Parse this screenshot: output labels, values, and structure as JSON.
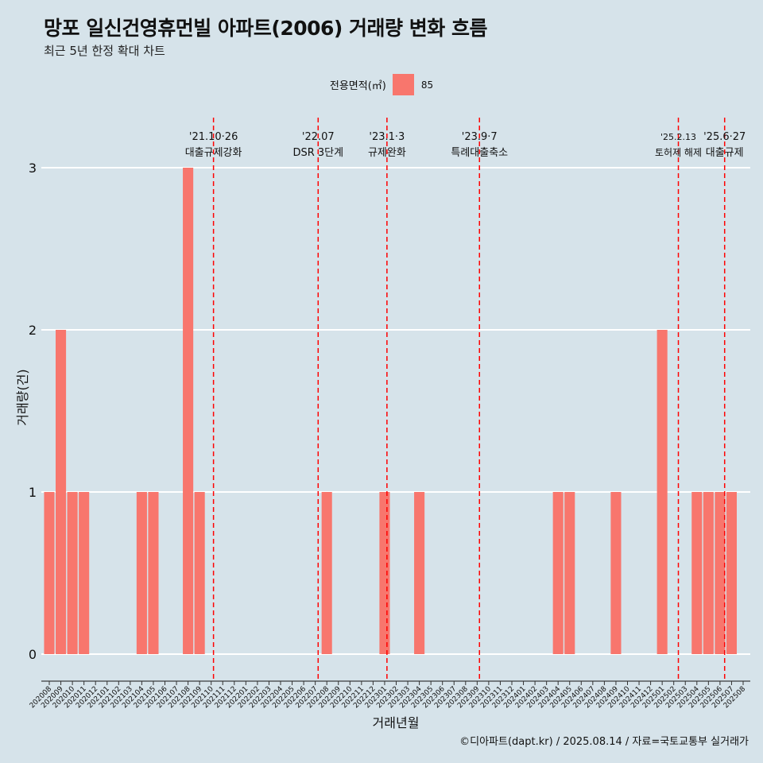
{
  "title": "망포 일신건영휴먼빌 아파트(2006) 거래량 변화 흐름",
  "subtitle": "최근 5년 한정 확대 차트",
  "legend": {
    "title": "전용면적(㎡)",
    "items": [
      {
        "label": "85",
        "color": "#f8766d"
      }
    ]
  },
  "credit": "©디아파트(dapt.kr) / 2025.08.14 / 자료=국토교통부 실거래가",
  "chart_data": {
    "type": "bar",
    "xlabel": "거래년월",
    "ylabel": "거래량(건)",
    "ylim": [
      0,
      3
    ],
    "yticks": [
      0,
      1,
      2,
      3
    ],
    "categories": [
      "202008",
      "202009",
      "202010",
      "202011",
      "202012",
      "202101",
      "202102",
      "202103",
      "202104",
      "202105",
      "202106",
      "202107",
      "202108",
      "202109",
      "202110",
      "202111",
      "202112",
      "202201",
      "202202",
      "202203",
      "202204",
      "202205",
      "202206",
      "202207",
      "202208",
      "202209",
      "202210",
      "202211",
      "202212",
      "202301",
      "202302",
      "202303",
      "202304",
      "202305",
      "202306",
      "202307",
      "202308",
      "202309",
      "202310",
      "202311",
      "202312",
      "202401",
      "202402",
      "202403",
      "202404",
      "202405",
      "202406",
      "202407",
      "202408",
      "202409",
      "202410",
      "202411",
      "202412",
      "202501",
      "202502",
      "202503",
      "202504",
      "202505",
      "202506",
      "202507",
      "202508"
    ],
    "series": [
      {
        "name": "85",
        "color": "#f8766d",
        "values": [
          1,
          2,
          1,
          1,
          0,
          0,
          0,
          0,
          1,
          1,
          0,
          0,
          3,
          1,
          0,
          0,
          0,
          0,
          0,
          0,
          0,
          0,
          0,
          0,
          1,
          0,
          0,
          0,
          0,
          1,
          0,
          0,
          1,
          0,
          0,
          0,
          0,
          0,
          0,
          0,
          0,
          0,
          0,
          0,
          1,
          1,
          0,
          0,
          0,
          1,
          0,
          0,
          0,
          2,
          0,
          0,
          1,
          1,
          1,
          1,
          0
        ]
      }
    ],
    "annotations": [
      {
        "x": 14.2,
        "line1": "'21.10·26",
        "line2": "대출규제강화"
      },
      {
        "x": 23.25,
        "line1": "'22.07",
        "line2": "DSR 3단계"
      },
      {
        "x": 29.2,
        "line1": "'23.1·3",
        "line2": "규제완화"
      },
      {
        "x": 37.2,
        "line1": "'23.9·7",
        "line2": "특례대출축소"
      },
      {
        "x": 54.4,
        "line1": "'25.2.13",
        "line2": "토허제 해제"
      },
      {
        "x": 58.4,
        "line1": "'25.6·27",
        "line2": "대출규제"
      }
    ],
    "annotation_color": "#ff0000",
    "grid": "horizontal-major"
  }
}
